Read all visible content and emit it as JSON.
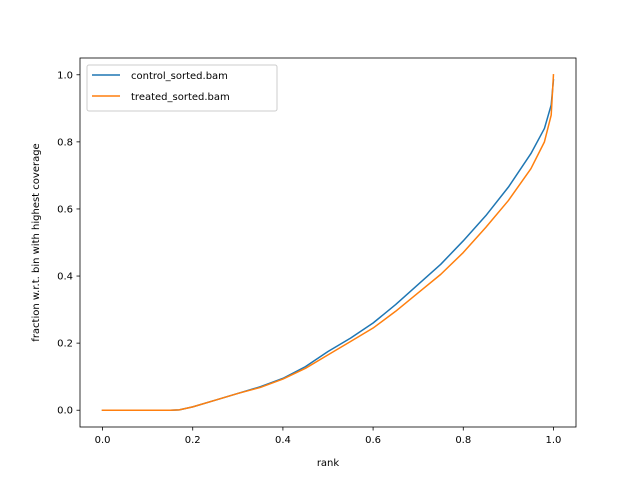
{
  "chart_data": {
    "type": "line",
    "title": "",
    "xlabel": "rank",
    "ylabel": "fraction w.r.t. bin with highest coverage",
    "xlim": [
      -0.05,
      1.05
    ],
    "ylim": [
      -0.05,
      1.05
    ],
    "xticks": [
      0.0,
      0.2,
      0.4,
      0.6,
      0.8,
      1.0
    ],
    "xtick_labels": [
      "0.0",
      "0.2",
      "0.4",
      "0.6",
      "0.8",
      "1.0"
    ],
    "yticks": [
      0.0,
      0.2,
      0.4,
      0.6,
      0.8,
      1.0
    ],
    "ytick_labels": [
      "0.0",
      "0.2",
      "0.4",
      "0.6",
      "0.8",
      "1.0"
    ],
    "grid": false,
    "legend_position": "upper-left",
    "series": [
      {
        "name": "control_sorted.bam",
        "color": "#1f77b4",
        "x": [
          0.0,
          0.05,
          0.1,
          0.15,
          0.17,
          0.2,
          0.25,
          0.3,
          0.35,
          0.4,
          0.45,
          0.5,
          0.55,
          0.6,
          0.65,
          0.7,
          0.75,
          0.8,
          0.85,
          0.9,
          0.95,
          0.98,
          0.995,
          1.0
        ],
        "y": [
          0.0,
          0.0,
          0.0,
          0.0,
          0.001,
          0.01,
          0.03,
          0.05,
          0.07,
          0.095,
          0.13,
          0.175,
          0.215,
          0.26,
          0.315,
          0.375,
          0.435,
          0.505,
          0.58,
          0.665,
          0.765,
          0.84,
          0.91,
          0.985
        ]
      },
      {
        "name": "treated_sorted.bam",
        "color": "#ff7f0e",
        "x": [
          0.0,
          0.05,
          0.1,
          0.15,
          0.17,
          0.2,
          0.25,
          0.3,
          0.35,
          0.4,
          0.45,
          0.5,
          0.55,
          0.6,
          0.65,
          0.7,
          0.75,
          0.8,
          0.85,
          0.9,
          0.95,
          0.98,
          0.995,
          1.0
        ],
        "y": [
          0.0,
          0.0,
          0.0,
          0.0,
          0.001,
          0.01,
          0.03,
          0.05,
          0.068,
          0.093,
          0.125,
          0.165,
          0.205,
          0.245,
          0.295,
          0.35,
          0.405,
          0.47,
          0.545,
          0.625,
          0.72,
          0.8,
          0.88,
          1.0
        ]
      }
    ]
  }
}
